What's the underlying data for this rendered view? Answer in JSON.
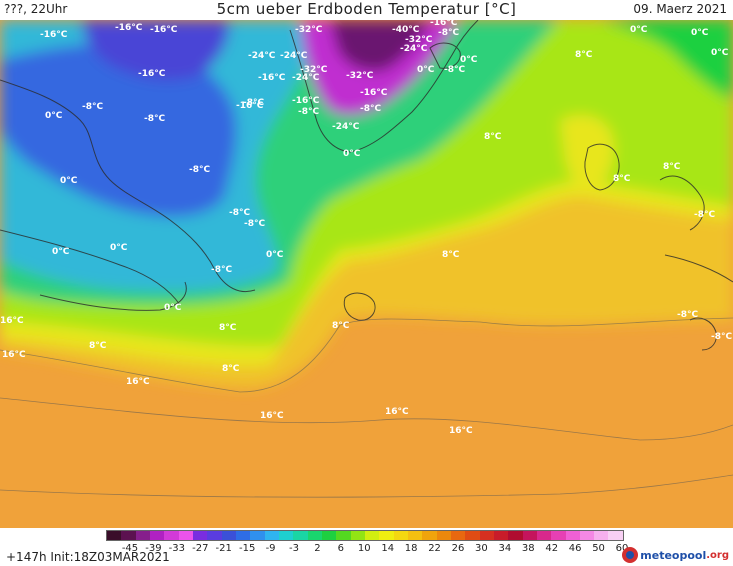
{
  "header": {
    "left": "???, 22Uhr",
    "title": "5cm ueber Erdboden Temperatur [°C]",
    "date": "09. Maerz 2021"
  },
  "map": {
    "labels": [
      "-16°C",
      "-16°C",
      "-16°C",
      "-32°C",
      "-16°C",
      "-8°C",
      "-16°C",
      "-24°C",
      "-24°C",
      "-40°C",
      "-32°C",
      "-24°C",
      "-32°C",
      "-24°C",
      "-16°C",
      "-8°C",
      "-16°C",
      "-32°C",
      "-16°C",
      "0°C",
      "-8°C",
      "0°C",
      "0°C",
      "0°C",
      "0°C",
      "-8°C",
      "-8°C",
      "-8°C",
      "-16°C",
      "-8°C",
      "-8°C",
      "-24°C",
      "0°C",
      "8°C",
      "0°C",
      "0°C",
      "-8°C",
      "-8°C",
      "-8°C",
      "0°C",
      "0°C",
      "8°C",
      "8°C",
      "8°C",
      "8°C",
      "-8°C",
      "0°C",
      "0°C",
      "8°C",
      "8°C",
      "16°C",
      "8°C",
      "8°C",
      "16°C",
      "16°C",
      "16°C",
      "16°C",
      "16°C"
    ]
  },
  "legend": {
    "colors": [
      "#3a0d2a",
      "#5c1150",
      "#861f8c",
      "#b021c2",
      "#d23ad8",
      "#ec53ec",
      "#7a2de0",
      "#5a3ce0",
      "#3b50d8",
      "#2e6de6",
      "#2f90ee",
      "#2fb4f0",
      "#1ed0d0",
      "#1ad6a4",
      "#19d66e",
      "#1ed040",
      "#54d820",
      "#92e414",
      "#d2ee10",
      "#f0ee10",
      "#f4d810",
      "#f4c010",
      "#f0a40c",
      "#ec880c",
      "#e86810",
      "#e04c14",
      "#d63020",
      "#c81c2a",
      "#b00c30",
      "#c4145c",
      "#d8288c",
      "#e640b4",
      "#f060d4",
      "#f488e4",
      "#f6b0ee",
      "#f8d0f4"
    ],
    "ticks": [
      "-45",
      "-39",
      "-33",
      "-27",
      "-21",
      "-15",
      "-9",
      "-3",
      "2",
      "6",
      "10",
      "14",
      "18",
      "22",
      "26",
      "30",
      "34",
      "38",
      "42",
      "46",
      "50",
      "60"
    ]
  },
  "footer": {
    "run_info": "+147h  Init:18Z03MAR2021",
    "brand_name": "meteopool",
    "brand_tld": ".org"
  }
}
